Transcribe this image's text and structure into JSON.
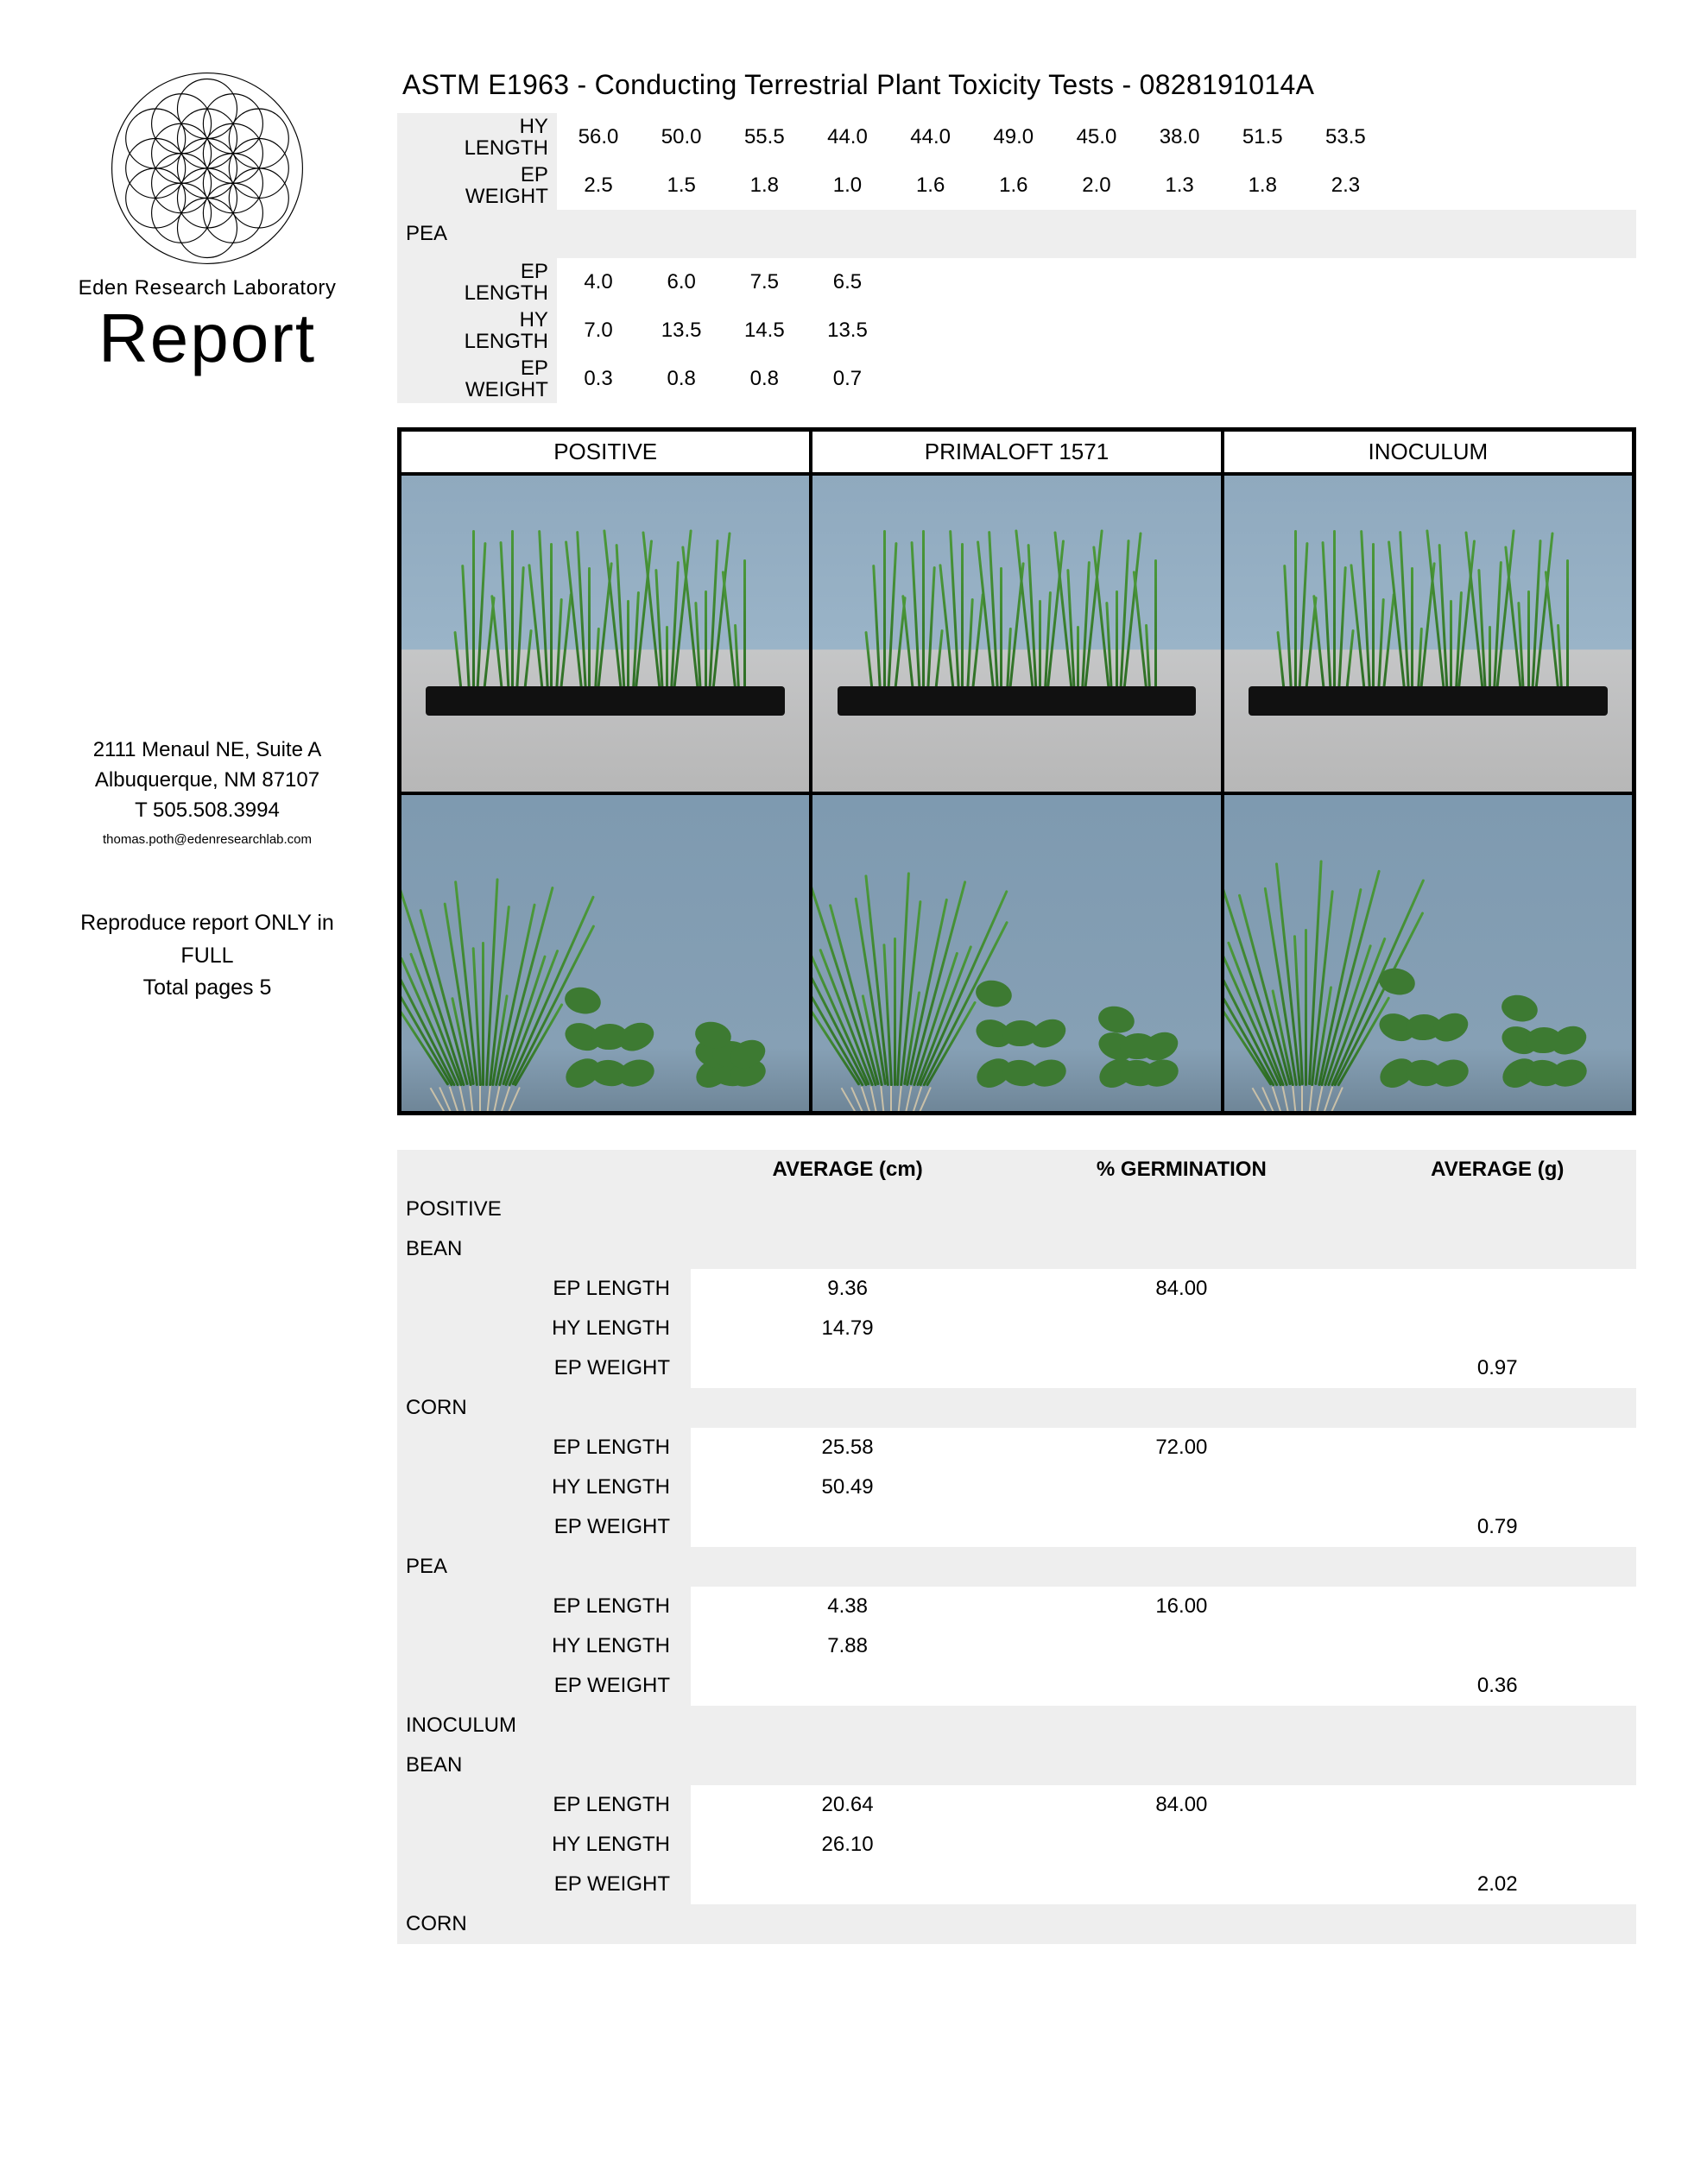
{
  "colors": {
    "page_bg": "#ffffff",
    "cell_bg": "#eeeeee",
    "cell_value_bg": "#ffffff",
    "border": "#000000",
    "text": "#000000",
    "grass_dark": "#2c6b24",
    "grass_light": "#4c9a3a",
    "sky": "#8fa9be",
    "table_top": "#c5c6c7",
    "root": "#c9c0a8"
  },
  "typography": {
    "body_family": "Helvetica Neue, Helvetica, Arial, sans-serif",
    "title_pt": 32,
    "report_pt": 80,
    "table_pt": 24
  },
  "sidebar": {
    "lab_name": "Eden Research Laboratory",
    "report_word": "Report",
    "address_line1": "2111 Menaul NE, Suite A",
    "address_line2": "Albuquerque, NM  87107",
    "phone": "T 505.508.3994",
    "email": "thomas.poth@edenresearchlab.com",
    "reproduce_line1": "Reproduce report ONLY in",
    "reproduce_line2": "FULL",
    "total_pages": "Total pages 5"
  },
  "title": "ASTM E1963 - Conducting Terrestrial Plant Toxicity Tests - 0828191014A",
  "top_table": {
    "num_value_cols": 13,
    "rows": [
      {
        "label": "HY LENGTH",
        "values": [
          "56.0",
          "50.0",
          "55.5",
          "44.0",
          "44.0",
          "49.0",
          "45.0",
          "38.0",
          "51.5",
          "53.5",
          "",
          "",
          ""
        ]
      },
      {
        "label": "EP WEIGHT",
        "values": [
          "2.5",
          "1.5",
          "1.8",
          "1.0",
          "1.6",
          "1.6",
          "2.0",
          "1.3",
          "1.8",
          "2.3",
          "",
          "",
          ""
        ]
      },
      {
        "section": "PEA"
      },
      {
        "label": "EP LENGTH",
        "values": [
          "4.0",
          "6.0",
          "7.5",
          "6.5",
          "",
          "",
          "",
          "",
          "",
          "",
          "",
          "",
          ""
        ]
      },
      {
        "label": "HY LENGTH",
        "values": [
          "7.0",
          "13.5",
          "14.5",
          "13.5",
          "",
          "",
          "",
          "",
          "",
          "",
          "",
          "",
          ""
        ]
      },
      {
        "label": "EP WEIGHT",
        "values": [
          "0.3",
          "0.8",
          "0.8",
          "0.7",
          "",
          "",
          "",
          "",
          "",
          "",
          "",
          "",
          ""
        ]
      }
    ]
  },
  "image_grid": {
    "headers": [
      "POSITIVE",
      "PRIMALOFT 1571",
      "INOCULUM"
    ]
  },
  "summary": {
    "headers": [
      "AVERAGE (cm)",
      "% GERMINATION",
      "AVERAGE (g)"
    ],
    "label_col_width": 340,
    "rows": [
      {
        "section": "POSITIVE"
      },
      {
        "section": "BEAN"
      },
      {
        "label": "EP LENGTH",
        "avg_cm": "9.36",
        "germ": "84.00",
        "avg_g": ""
      },
      {
        "label": "HY LENGTH",
        "avg_cm": "14.79",
        "germ": "",
        "avg_g": ""
      },
      {
        "label": "EP WEIGHT",
        "avg_cm": "",
        "germ": "",
        "avg_g": "0.97"
      },
      {
        "section": "CORN"
      },
      {
        "label": "EP LENGTH",
        "avg_cm": "25.58",
        "germ": "72.00",
        "avg_g": ""
      },
      {
        "label": "HY LENGTH",
        "avg_cm": "50.49",
        "germ": "",
        "avg_g": ""
      },
      {
        "label": "EP WEIGHT",
        "avg_cm": "",
        "germ": "",
        "avg_g": "0.79"
      },
      {
        "section": "PEA"
      },
      {
        "label": "EP LENGTH",
        "avg_cm": "4.38",
        "germ": "16.00",
        "avg_g": ""
      },
      {
        "label": "HY LENGTH",
        "avg_cm": "7.88",
        "germ": "",
        "avg_g": ""
      },
      {
        "label": "EP WEIGHT",
        "avg_cm": "",
        "germ": "",
        "avg_g": "0.36"
      },
      {
        "section": "INOCULUM"
      },
      {
        "section": "BEAN"
      },
      {
        "label": "EP LENGTH",
        "avg_cm": "20.64",
        "germ": "84.00",
        "avg_g": ""
      },
      {
        "label": "HY LENGTH",
        "avg_cm": "26.10",
        "germ": "",
        "avg_g": ""
      },
      {
        "label": "EP WEIGHT",
        "avg_cm": "",
        "germ": "",
        "avg_g": "2.02"
      },
      {
        "section": "CORN"
      }
    ]
  }
}
